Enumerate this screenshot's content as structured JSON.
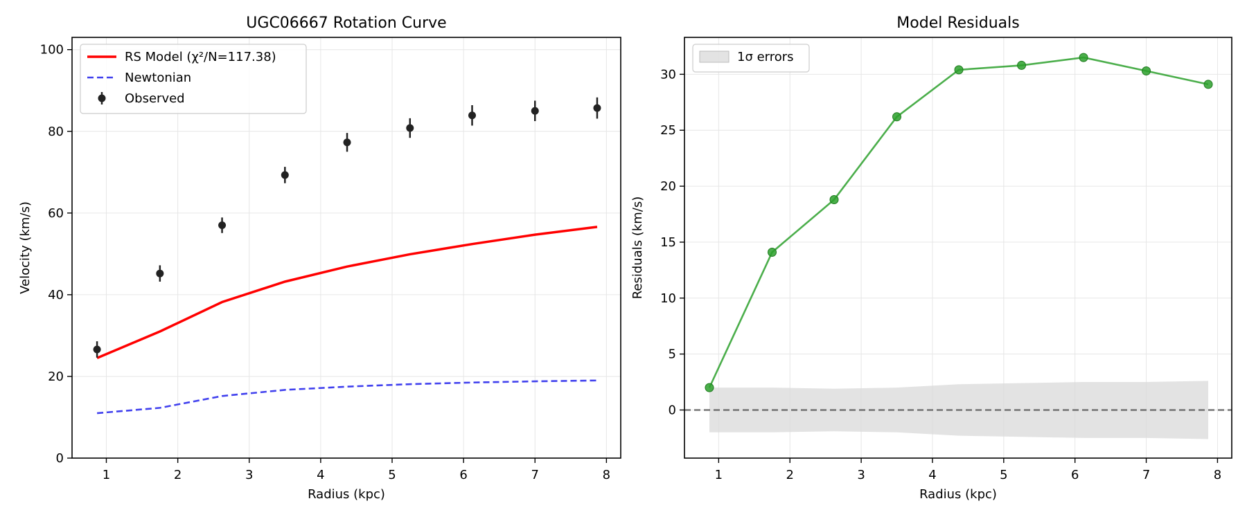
{
  "chart_data": [
    {
      "type": "line",
      "title": "UGC06667 Rotation Curve",
      "xlabel": "Radius (kpc)",
      "ylabel": "Velocity (km/s)",
      "xlim": [
        0.52,
        8.2
      ],
      "ylim": [
        0,
        103
      ],
      "xticks": [
        1,
        2,
        3,
        4,
        5,
        6,
        7,
        8
      ],
      "yticks": [
        0,
        20,
        40,
        60,
        80,
        100
      ],
      "grid": true,
      "legend_position": "top-left",
      "series": [
        {
          "name": "RS Model (χ²/N=117.38)",
          "kind": "line",
          "color": "#ff0000",
          "x": [
            0.87,
            1.75,
            2.62,
            3.5,
            4.37,
            5.25,
            6.12,
            7.0,
            7.87
          ],
          "y": [
            24.5,
            31.0,
            38.2,
            43.2,
            46.9,
            49.9,
            52.4,
            54.7,
            56.6
          ]
        },
        {
          "name": "Newtonian",
          "kind": "dashed-line",
          "color": "#4040ee",
          "x": [
            0.87,
            1.75,
            2.62,
            3.5,
            4.37,
            5.25,
            6.12,
            7.0,
            7.87
          ],
          "y": [
            11.0,
            12.3,
            15.2,
            16.7,
            17.5,
            18.1,
            18.5,
            18.8,
            19.0
          ]
        },
        {
          "name": "Observed",
          "kind": "errorbar",
          "color": "#222222",
          "x": [
            0.87,
            1.75,
            2.62,
            3.5,
            4.37,
            5.25,
            6.12,
            7.0,
            7.87
          ],
          "y": [
            26.6,
            45.2,
            57.0,
            69.3,
            77.3,
            80.8,
            83.9,
            85.0,
            85.7
          ],
          "yerr": [
            2.0,
            2.0,
            1.9,
            2.0,
            2.3,
            2.4,
            2.5,
            2.5,
            2.6
          ]
        }
      ]
    },
    {
      "type": "line",
      "title": "Model Residuals",
      "xlabel": "Radius (kpc)",
      "ylabel": "Residuals (km/s)",
      "xlim": [
        0.52,
        8.2
      ],
      "ylim": [
        -4.3,
        33.3
      ],
      "xticks": [
        1,
        2,
        3,
        4,
        5,
        6,
        7,
        8
      ],
      "yticks": [
        0,
        5,
        10,
        15,
        20,
        25,
        30
      ],
      "grid": true,
      "legend_position": "top-left",
      "zero_line": true,
      "series": [
        {
          "name": "",
          "kind": "line-markers",
          "color": "#2ca02c",
          "x": [
            0.87,
            1.75,
            2.62,
            3.5,
            4.37,
            5.25,
            6.12,
            7.0,
            7.87
          ],
          "y": [
            2.0,
            14.1,
            18.8,
            26.2,
            30.4,
            30.8,
            31.5,
            30.3,
            29.1
          ]
        },
        {
          "name": "1σ errors",
          "kind": "band",
          "color": "#d9d9d9",
          "x": [
            0.87,
            1.75,
            2.62,
            3.5,
            4.37,
            5.25,
            6.12,
            7.0,
            7.87
          ],
          "lower": [
            -2.0,
            -2.0,
            -1.9,
            -2.0,
            -2.3,
            -2.4,
            -2.5,
            -2.5,
            -2.6
          ],
          "upper": [
            2.0,
            2.0,
            1.9,
            2.0,
            2.3,
            2.4,
            2.5,
            2.5,
            2.6
          ]
        }
      ]
    }
  ]
}
